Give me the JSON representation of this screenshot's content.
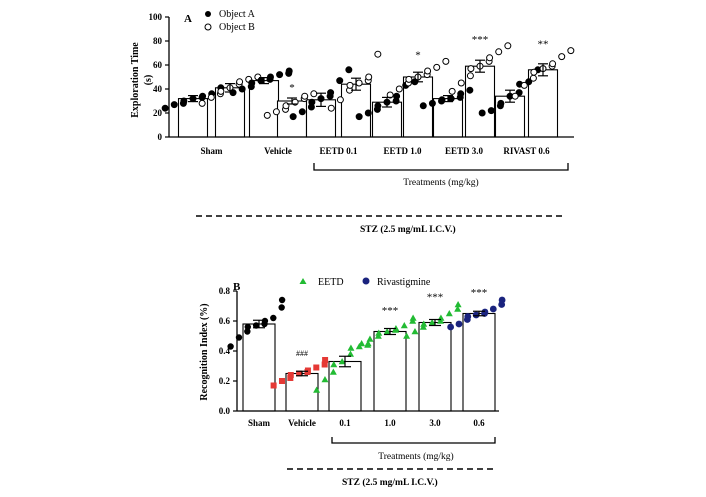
{
  "colors": {
    "axis": "#000000",
    "bar_fill": "#ffffff",
    "eetd_green": "#22bb33",
    "rivastigmine_navy": "#1a237e",
    "vehicle_red": "#e53935",
    "sham_black": "#000000"
  },
  "chart_data": [
    {
      "panel_label": "A",
      "type": "bar",
      "ylabel_line1": "Exploration Time",
      "ylabel_line2": "(s)",
      "ylim": [
        0,
        100
      ],
      "yticks": [
        "0",
        "20",
        "40",
        "60",
        "80",
        "100"
      ],
      "categories": [
        "Sham",
        "Vehicle",
        "EETD 0.1",
        "EETD 1.0",
        "EETD 3.0",
        "RIVAST 0.6"
      ],
      "legend": [
        {
          "label": "Object A",
          "marker": "filled-circle"
        },
        {
          "label": "Object B",
          "marker": "open-circle"
        }
      ],
      "series": [
        {
          "name": "Object A",
          "values": [
            32,
            47,
            31,
            29,
            32,
            34
          ],
          "errors": [
            2.5,
            2.5,
            5.5,
            4,
            2.5,
            5
          ],
          "points": [
            [
              24,
              27,
              28,
              30,
              32,
              33,
              34,
              36,
              41
            ],
            [
              37,
              40,
              42,
              45,
              47,
              48,
              50,
              52,
              53,
              55
            ],
            [
              17,
              21,
              25,
              29,
              32,
              34,
              37,
              47,
              56
            ],
            [
              17,
              20,
              23,
              26,
              29,
              30,
              34,
              43,
              46
            ],
            [
              26,
              28,
              30,
              31,
              32,
              33,
              36,
              39
            ],
            [
              20,
              22,
              26,
              28,
              34,
              37,
              44,
              46,
              56
            ]
          ]
        },
        {
          "name": "Object B",
          "values": [
            41,
            30,
            44,
            50,
            59,
            56
          ],
          "errors": [
            3.5,
            2.5,
            5,
            4,
            5,
            5
          ],
          "points": [
            [
              28,
              33,
              36,
              38,
              41,
              44,
              46,
              48,
              50
            ],
            [
              18,
              21,
              23,
              26,
              29,
              32,
              34,
              36
            ],
            [
              24,
              31,
              39,
              43,
              45,
              47,
              50,
              69
            ],
            [
              35,
              40,
              45,
              48,
              50,
              52,
              55,
              58,
              63
            ],
            [
              38,
              45,
              51,
              57,
              59,
              63,
              66,
              71,
              76
            ],
            [
              34,
              43,
              49,
              54,
              57,
              59,
              61,
              67,
              72
            ]
          ]
        }
      ],
      "significance": [
        "",
        "*",
        "",
        "*",
        "***",
        "**"
      ],
      "treatment_bracket_label": "Treatments (mg/kg)",
      "stz_label": "STZ (2.5 mg/mL I.C.V.)"
    },
    {
      "panel_label": "B",
      "type": "bar",
      "ylabel": "Recognition Index (%)",
      "ylim": [
        0,
        0.8
      ],
      "yticks": [
        "0.0",
        "0.2",
        "0.4",
        "0.6",
        "0.8"
      ],
      "categories": [
        "Sham",
        "Vehicle",
        "0.1",
        "1.0",
        "3.0",
        "0.6"
      ],
      "legend": [
        {
          "label": "EETD",
          "marker": "green-triangle"
        },
        {
          "label": "Rivastigmine",
          "marker": "navy-circle"
        }
      ],
      "values": [
        0.58,
        0.25,
        0.33,
        0.53,
        0.59,
        0.65
      ],
      "errors": [
        0.025,
        0.015,
        0.035,
        0.02,
        0.02,
        0.015
      ],
      "points": [
        [
          0.43,
          0.49,
          0.53,
          0.56,
          0.57,
          0.58,
          0.6,
          0.62,
          0.69,
          0.74
        ],
        [
          0.17,
          0.2,
          0.22,
          0.24,
          0.25,
          0.26,
          0.27,
          0.29,
          0.31,
          0.34
        ],
        [
          0.14,
          0.21,
          0.26,
          0.31,
          0.33,
          0.38,
          0.42,
          0.43,
          0.44,
          0.45
        ],
        [
          0.45,
          0.48,
          0.5,
          0.52,
          0.53,
          0.54,
          0.55,
          0.57,
          0.6,
          0.62
        ],
        [
          0.5,
          0.53,
          0.56,
          0.58,
          0.59,
          0.6,
          0.62,
          0.65,
          0.68,
          0.71
        ],
        [
          0.56,
          0.58,
          0.61,
          0.63,
          0.64,
          0.65,
          0.66,
          0.68,
          0.71,
          0.74
        ]
      ],
      "point_markers": [
        "black-circle",
        "red-square",
        "green-triangle",
        "green-triangle",
        "green-triangle",
        "navy-circle"
      ],
      "significance": [
        "",
        "###",
        "",
        "***",
        "***",
        "***"
      ],
      "treatment_bracket_label": "Treatments (mg/kg)",
      "stz_label": "STZ (2.5 mg/mL I.C.V.)"
    }
  ]
}
